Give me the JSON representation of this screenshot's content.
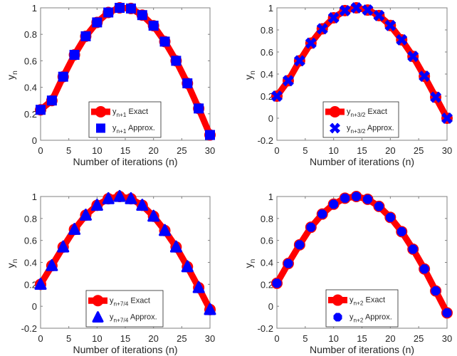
{
  "figure": {
    "colors": {
      "exact_line": "#ff0000",
      "approx_marker": "#0000ff",
      "axis": "#262626",
      "axis_box": "#808080",
      "legend_border": "#262626",
      "background": "#ffffff"
    }
  },
  "chart_data": [
    {
      "type": "line",
      "position": "top-left",
      "title": "",
      "xlabel": "Number of iterations (n)",
      "ylabel": "y",
      "ylabel_sub": "n",
      "xlim": [
        0,
        30
      ],
      "ylim": [
        0,
        1
      ],
      "xticks": [
        0,
        5,
        10,
        15,
        20,
        25,
        30
      ],
      "yticks": [
        0,
        0.2,
        0.4,
        0.6,
        0.8,
        1
      ],
      "ytick_labels": [
        "0",
        "0.2",
        "0.4",
        "0.6",
        "0.8",
        "1"
      ],
      "grid": false,
      "legend_placement": "bottom-center",
      "x": [
        0,
        2,
        4,
        6,
        8,
        10,
        12,
        14,
        16,
        18,
        20,
        22,
        24,
        26,
        28,
        30
      ],
      "series": [
        {
          "name": "y_{n+1} Exact",
          "base": "y",
          "sub": "n+1",
          "suffix": "Exact",
          "style": "line",
          "values": [
            0.23,
            0.3,
            0.48,
            0.645,
            0.785,
            0.89,
            0.965,
            1.0,
            0.995,
            0.945,
            0.865,
            0.745,
            0.6,
            0.43,
            0.24,
            0.04
          ]
        },
        {
          "name": "y_{n+1} Approx.",
          "base": "y",
          "sub": "n+1",
          "suffix": "Approx.",
          "style": "marker",
          "marker": "square",
          "values": [
            0.23,
            0.3,
            0.48,
            0.645,
            0.785,
            0.89,
            0.965,
            1.0,
            0.995,
            0.945,
            0.865,
            0.745,
            0.6,
            0.43,
            0.24,
            0.04
          ]
        }
      ]
    },
    {
      "type": "line",
      "position": "top-right",
      "title": "",
      "xlabel": "Number of iterations (n)",
      "ylabel": "y",
      "ylabel_sub": "n",
      "xlim": [
        0,
        30
      ],
      "ylim": [
        -0.2,
        1
      ],
      "xticks": [
        0,
        5,
        10,
        15,
        20,
        25,
        30
      ],
      "yticks": [
        -0.2,
        0,
        0.2,
        0.4,
        0.6,
        0.8,
        1
      ],
      "ytick_labels": [
        "-0.2",
        "0",
        "0.2",
        "0.4",
        "0.6",
        "0.8",
        "1"
      ],
      "grid": false,
      "legend_placement": "bottom-center",
      "x": [
        0,
        2,
        4,
        6,
        8,
        10,
        12,
        14,
        16,
        18,
        20,
        22,
        24,
        26,
        28,
        30
      ],
      "series": [
        {
          "name": "y_{n+3/2} Exact",
          "base": "y",
          "sub": "n+3/2",
          "suffix": "Exact",
          "style": "line",
          "values": [
            0.2,
            0.34,
            0.52,
            0.68,
            0.81,
            0.91,
            0.975,
            1.0,
            0.98,
            0.93,
            0.84,
            0.71,
            0.56,
            0.38,
            0.19,
            0.0
          ]
        },
        {
          "name": "y_{n+3/2} Approx.",
          "base": "y",
          "sub": "n+3/2",
          "suffix": "Approx.",
          "style": "marker",
          "marker": "x-cross",
          "values": [
            0.2,
            0.34,
            0.52,
            0.68,
            0.81,
            0.91,
            0.975,
            1.0,
            0.98,
            0.93,
            0.84,
            0.71,
            0.56,
            0.38,
            0.19,
            0.0
          ]
        }
      ]
    },
    {
      "type": "line",
      "position": "bottom-left",
      "title": "",
      "xlabel": "Number of iterations (n)",
      "ylabel": "y",
      "ylabel_sub": "n",
      "xlim": [
        0,
        30
      ],
      "ylim": [
        -0.2,
        1
      ],
      "xticks": [
        0,
        5,
        10,
        15,
        20,
        25,
        30
      ],
      "yticks": [
        -0.2,
        0,
        0.2,
        0.4,
        0.6,
        0.8,
        1
      ],
      "ytick_labels": [
        "-0.2",
        "0",
        "0.2",
        "0.4",
        "0.6",
        "0.8",
        "1"
      ],
      "grid": false,
      "legend_placement": "bottom-center",
      "x": [
        0,
        2,
        4,
        6,
        8,
        10,
        12,
        14,
        16,
        18,
        20,
        22,
        24,
        26,
        28,
        30
      ],
      "series": [
        {
          "name": "y_{n+7/4} Exact",
          "base": "y",
          "sub": "n+7/4",
          "suffix": "Exact",
          "style": "line",
          "values": [
            0.2,
            0.37,
            0.54,
            0.7,
            0.83,
            0.92,
            0.98,
            1.0,
            0.98,
            0.92,
            0.82,
            0.69,
            0.54,
            0.36,
            0.17,
            -0.03
          ]
        },
        {
          "name": "y_{n+7/4} Approx.",
          "base": "y",
          "sub": "n+7/4",
          "suffix": "Approx.",
          "style": "marker",
          "marker": "triangle",
          "values": [
            0.2,
            0.37,
            0.54,
            0.7,
            0.83,
            0.92,
            0.98,
            1.0,
            0.98,
            0.92,
            0.82,
            0.69,
            0.54,
            0.36,
            0.17,
            -0.03
          ]
        }
      ]
    },
    {
      "type": "line",
      "position": "bottom-right",
      "title": "",
      "xlabel": "Number of iterations (n)",
      "ylabel": "y",
      "ylabel_sub": "n",
      "xlim": [
        0,
        30
      ],
      "ylim": [
        -0.2,
        1
      ],
      "xticks": [
        0,
        5,
        10,
        15,
        20,
        25,
        30
      ],
      "yticks": [
        -0.2,
        0,
        0.2,
        0.4,
        0.6,
        0.8,
        1
      ],
      "ytick_labels": [
        "-0.2",
        "0",
        "0.2",
        "0.4",
        "0.6",
        "0.8",
        "1"
      ],
      "grid": false,
      "legend_placement": "bottom-center",
      "x": [
        0,
        2,
        4,
        6,
        8,
        10,
        12,
        14,
        16,
        18,
        20,
        22,
        24,
        26,
        28,
        30
      ],
      "series": [
        {
          "name": "y_{n+2} Exact",
          "base": "y",
          "sub": "n+2",
          "suffix": "Exact",
          "style": "line",
          "values": [
            0.21,
            0.39,
            0.56,
            0.72,
            0.84,
            0.93,
            0.985,
            1.0,
            0.975,
            0.91,
            0.81,
            0.68,
            0.52,
            0.34,
            0.14,
            -0.06
          ]
        },
        {
          "name": "y_{n+2} Approx.",
          "base": "y",
          "sub": "n+2",
          "suffix": "Approx.",
          "style": "marker",
          "marker": "octagon",
          "values": [
            0.21,
            0.39,
            0.56,
            0.72,
            0.84,
            0.93,
            0.985,
            1.0,
            0.975,
            0.91,
            0.81,
            0.68,
            0.52,
            0.34,
            0.14,
            -0.06
          ]
        }
      ]
    }
  ]
}
